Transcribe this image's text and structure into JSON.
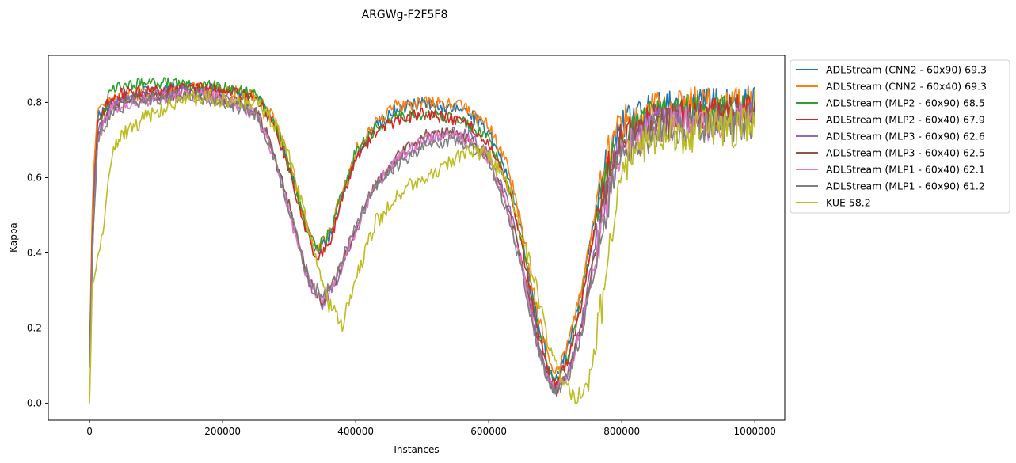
{
  "chart_data": {
    "type": "line",
    "title": "ARGWg-F2F5F8",
    "xlabel": "Instances",
    "ylabel": "Kappa",
    "xlim": [
      -62000,
      1045000
    ],
    "ylim": [
      -0.045,
      0.925
    ],
    "xticks": [
      0,
      200000,
      400000,
      600000,
      800000,
      1000000
    ],
    "xtick_labels": [
      "0",
      "200000",
      "400000",
      "600000",
      "800000",
      "1000000"
    ],
    "yticks": [
      0.0,
      0.2,
      0.4,
      0.6,
      0.8
    ],
    "ytick_labels": [
      "0.0",
      "0.2",
      "0.4",
      "0.6",
      "0.8"
    ],
    "grid": false,
    "legend_position": "outside-right-top",
    "series": [
      {
        "name": "ADLStream (CNN2 - 60x90) 69.3",
        "color": "#1f77b4",
        "noise": 0.018,
        "seed": 11,
        "x": [
          0,
          5000,
          12000,
          30000,
          60000,
          100000,
          150000,
          200000,
          250000,
          280000,
          300000,
          320000,
          340000,
          360000,
          380000,
          400000,
          430000,
          460000,
          500000,
          540000,
          570000,
          600000,
          630000,
          650000,
          670000,
          690000,
          700000,
          720000,
          740000,
          760000,
          780000,
          800000,
          850000,
          900000,
          950000,
          1000000
        ],
        "y": [
          0.1,
          0.55,
          0.76,
          0.79,
          0.82,
          0.83,
          0.84,
          0.83,
          0.82,
          0.74,
          0.63,
          0.5,
          0.4,
          0.44,
          0.55,
          0.66,
          0.74,
          0.78,
          0.8,
          0.79,
          0.77,
          0.72,
          0.6,
          0.45,
          0.25,
          0.1,
          0.06,
          0.15,
          0.3,
          0.5,
          0.66,
          0.74,
          0.78,
          0.8,
          0.79,
          0.8
        ]
      },
      {
        "name": "ADLStream (CNN2 - 60x40) 69.3",
        "color": "#ff7f0e",
        "noise": 0.018,
        "seed": 12,
        "x": [
          0,
          5000,
          12000,
          30000,
          60000,
          100000,
          150000,
          200000,
          250000,
          280000,
          300000,
          320000,
          340000,
          360000,
          380000,
          400000,
          430000,
          460000,
          500000,
          540000,
          570000,
          600000,
          630000,
          650000,
          670000,
          690000,
          700000,
          720000,
          740000,
          760000,
          780000,
          800000,
          850000,
          900000,
          950000,
          1000000
        ],
        "y": [
          0.12,
          0.6,
          0.77,
          0.8,
          0.82,
          0.83,
          0.84,
          0.83,
          0.82,
          0.75,
          0.64,
          0.51,
          0.41,
          0.45,
          0.56,
          0.67,
          0.75,
          0.79,
          0.8,
          0.8,
          0.78,
          0.74,
          0.62,
          0.47,
          0.27,
          0.11,
          0.07,
          0.16,
          0.31,
          0.51,
          0.67,
          0.75,
          0.78,
          0.8,
          0.79,
          0.8
        ]
      },
      {
        "name": "ADLStream (MLP2 - 60x90) 68.5",
        "color": "#2ca02c",
        "noise": 0.016,
        "seed": 13,
        "x": [
          0,
          5000,
          12000,
          30000,
          60000,
          100000,
          150000,
          200000,
          250000,
          280000,
          300000,
          320000,
          340000,
          360000,
          380000,
          400000,
          430000,
          460000,
          500000,
          540000,
          570000,
          600000,
          630000,
          650000,
          670000,
          690000,
          700000,
          720000,
          740000,
          760000,
          780000,
          800000,
          850000,
          900000,
          950000,
          1000000
        ],
        "y": [
          0.14,
          0.45,
          0.7,
          0.83,
          0.85,
          0.85,
          0.85,
          0.84,
          0.82,
          0.74,
          0.63,
          0.5,
          0.41,
          0.45,
          0.56,
          0.67,
          0.73,
          0.76,
          0.77,
          0.76,
          0.74,
          0.7,
          0.58,
          0.43,
          0.23,
          0.08,
          0.04,
          0.13,
          0.28,
          0.48,
          0.64,
          0.72,
          0.77,
          0.78,
          0.78,
          0.78
        ]
      },
      {
        "name": "ADLStream (MLP2 - 60x40) 67.9",
        "color": "#d62728",
        "noise": 0.016,
        "seed": 14,
        "x": [
          0,
          5000,
          12000,
          30000,
          60000,
          100000,
          150000,
          200000,
          250000,
          280000,
          300000,
          320000,
          340000,
          360000,
          380000,
          400000,
          430000,
          460000,
          500000,
          540000,
          570000,
          600000,
          630000,
          650000,
          670000,
          690000,
          700000,
          720000,
          740000,
          760000,
          780000,
          800000,
          850000,
          900000,
          950000,
          1000000
        ],
        "y": [
          0.12,
          0.5,
          0.74,
          0.81,
          0.83,
          0.83,
          0.84,
          0.83,
          0.81,
          0.73,
          0.62,
          0.49,
          0.39,
          0.42,
          0.54,
          0.65,
          0.72,
          0.75,
          0.77,
          0.76,
          0.74,
          0.69,
          0.57,
          0.42,
          0.22,
          0.08,
          0.05,
          0.12,
          0.27,
          0.47,
          0.63,
          0.71,
          0.76,
          0.77,
          0.78,
          0.78
        ]
      },
      {
        "name": "ADLStream (MLP3 - 60x90) 62.6",
        "color": "#9467bd",
        "noise": 0.017,
        "seed": 15,
        "x": [
          0,
          5000,
          12000,
          30000,
          60000,
          100000,
          150000,
          200000,
          250000,
          270000,
          290000,
          310000,
          330000,
          350000,
          370000,
          400000,
          430000,
          460000,
          500000,
          540000,
          570000,
          600000,
          630000,
          650000,
          670000,
          690000,
          700000,
          720000,
          740000,
          760000,
          780000,
          800000,
          850000,
          900000,
          950000,
          1000000
        ],
        "y": [
          0.12,
          0.5,
          0.72,
          0.78,
          0.81,
          0.82,
          0.83,
          0.81,
          0.78,
          0.7,
          0.58,
          0.45,
          0.32,
          0.26,
          0.32,
          0.46,
          0.58,
          0.64,
          0.7,
          0.72,
          0.71,
          0.66,
          0.53,
          0.38,
          0.2,
          0.06,
          0.03,
          0.08,
          0.22,
          0.42,
          0.6,
          0.7,
          0.74,
          0.76,
          0.75,
          0.76
        ]
      },
      {
        "name": "ADLStream (MLP3 - 60x40) 62.5",
        "color": "#8c564b",
        "noise": 0.017,
        "seed": 16,
        "x": [
          0,
          5000,
          12000,
          30000,
          60000,
          100000,
          150000,
          200000,
          250000,
          270000,
          290000,
          310000,
          330000,
          350000,
          370000,
          400000,
          430000,
          460000,
          500000,
          540000,
          570000,
          600000,
          630000,
          650000,
          670000,
          690000,
          700000,
          720000,
          740000,
          760000,
          780000,
          800000,
          850000,
          900000,
          950000,
          1000000
        ],
        "y": [
          0.11,
          0.48,
          0.71,
          0.78,
          0.81,
          0.82,
          0.82,
          0.81,
          0.78,
          0.7,
          0.59,
          0.46,
          0.33,
          0.27,
          0.33,
          0.47,
          0.59,
          0.65,
          0.71,
          0.72,
          0.7,
          0.65,
          0.52,
          0.37,
          0.19,
          0.06,
          0.03,
          0.08,
          0.21,
          0.41,
          0.59,
          0.69,
          0.74,
          0.76,
          0.75,
          0.76
        ]
      },
      {
        "name": "ADLStream (MLP1 - 60x40) 62.1",
        "color": "#e377c2",
        "noise": 0.018,
        "seed": 17,
        "x": [
          0,
          5000,
          12000,
          30000,
          60000,
          100000,
          150000,
          200000,
          250000,
          270000,
          290000,
          310000,
          330000,
          350000,
          370000,
          400000,
          430000,
          460000,
          500000,
          540000,
          570000,
          600000,
          630000,
          650000,
          670000,
          690000,
          700000,
          720000,
          740000,
          760000,
          780000,
          800000,
          850000,
          900000,
          950000,
          1000000
        ],
        "y": [
          0.1,
          0.45,
          0.7,
          0.78,
          0.8,
          0.81,
          0.82,
          0.81,
          0.77,
          0.69,
          0.57,
          0.44,
          0.32,
          0.27,
          0.33,
          0.46,
          0.58,
          0.64,
          0.7,
          0.71,
          0.7,
          0.65,
          0.51,
          0.36,
          0.18,
          0.06,
          0.04,
          0.08,
          0.2,
          0.38,
          0.55,
          0.67,
          0.73,
          0.75,
          0.74,
          0.75
        ]
      },
      {
        "name": "ADLStream (MLP1 - 60x90) 61.2",
        "color": "#7f7f7f",
        "noise": 0.018,
        "seed": 18,
        "x": [
          0,
          5000,
          12000,
          30000,
          60000,
          100000,
          150000,
          200000,
          250000,
          270000,
          290000,
          310000,
          330000,
          350000,
          370000,
          400000,
          430000,
          460000,
          500000,
          540000,
          570000,
          600000,
          630000,
          650000,
          670000,
          690000,
          700000,
          720000,
          740000,
          760000,
          780000,
          800000,
          850000,
          900000,
          950000,
          1000000
        ],
        "y": [
          0.1,
          0.44,
          0.69,
          0.77,
          0.8,
          0.81,
          0.82,
          0.8,
          0.77,
          0.69,
          0.57,
          0.45,
          0.33,
          0.28,
          0.34,
          0.47,
          0.58,
          0.63,
          0.68,
          0.7,
          0.69,
          0.64,
          0.5,
          0.35,
          0.17,
          0.06,
          0.03,
          0.07,
          0.19,
          0.37,
          0.54,
          0.66,
          0.72,
          0.74,
          0.73,
          0.74
        ]
      },
      {
        "name": "KUE 58.2",
        "color": "#bcbd22",
        "noise": 0.022,
        "seed": 19,
        "x": [
          0,
          4000,
          10000,
          20000,
          35000,
          60000,
          100000,
          150000,
          200000,
          250000,
          280000,
          300000,
          320000,
          340000,
          360000,
          380000,
          400000,
          430000,
          470000,
          500000,
          540000,
          570000,
          600000,
          630000,
          650000,
          670000,
          690000,
          710000,
          730000,
          750000,
          760000,
          775000,
          790000,
          810000,
          850000,
          900000,
          950000,
          1000000
        ],
        "y": [
          0.0,
          0.3,
          0.38,
          0.45,
          0.68,
          0.73,
          0.78,
          0.81,
          0.81,
          0.8,
          0.74,
          0.65,
          0.52,
          0.38,
          0.26,
          0.21,
          0.33,
          0.48,
          0.56,
          0.6,
          0.64,
          0.67,
          0.66,
          0.57,
          0.44,
          0.32,
          0.15,
          0.06,
          0.01,
          0.05,
          0.15,
          0.32,
          0.52,
          0.66,
          0.7,
          0.72,
          0.73,
          0.74
        ]
      }
    ]
  }
}
